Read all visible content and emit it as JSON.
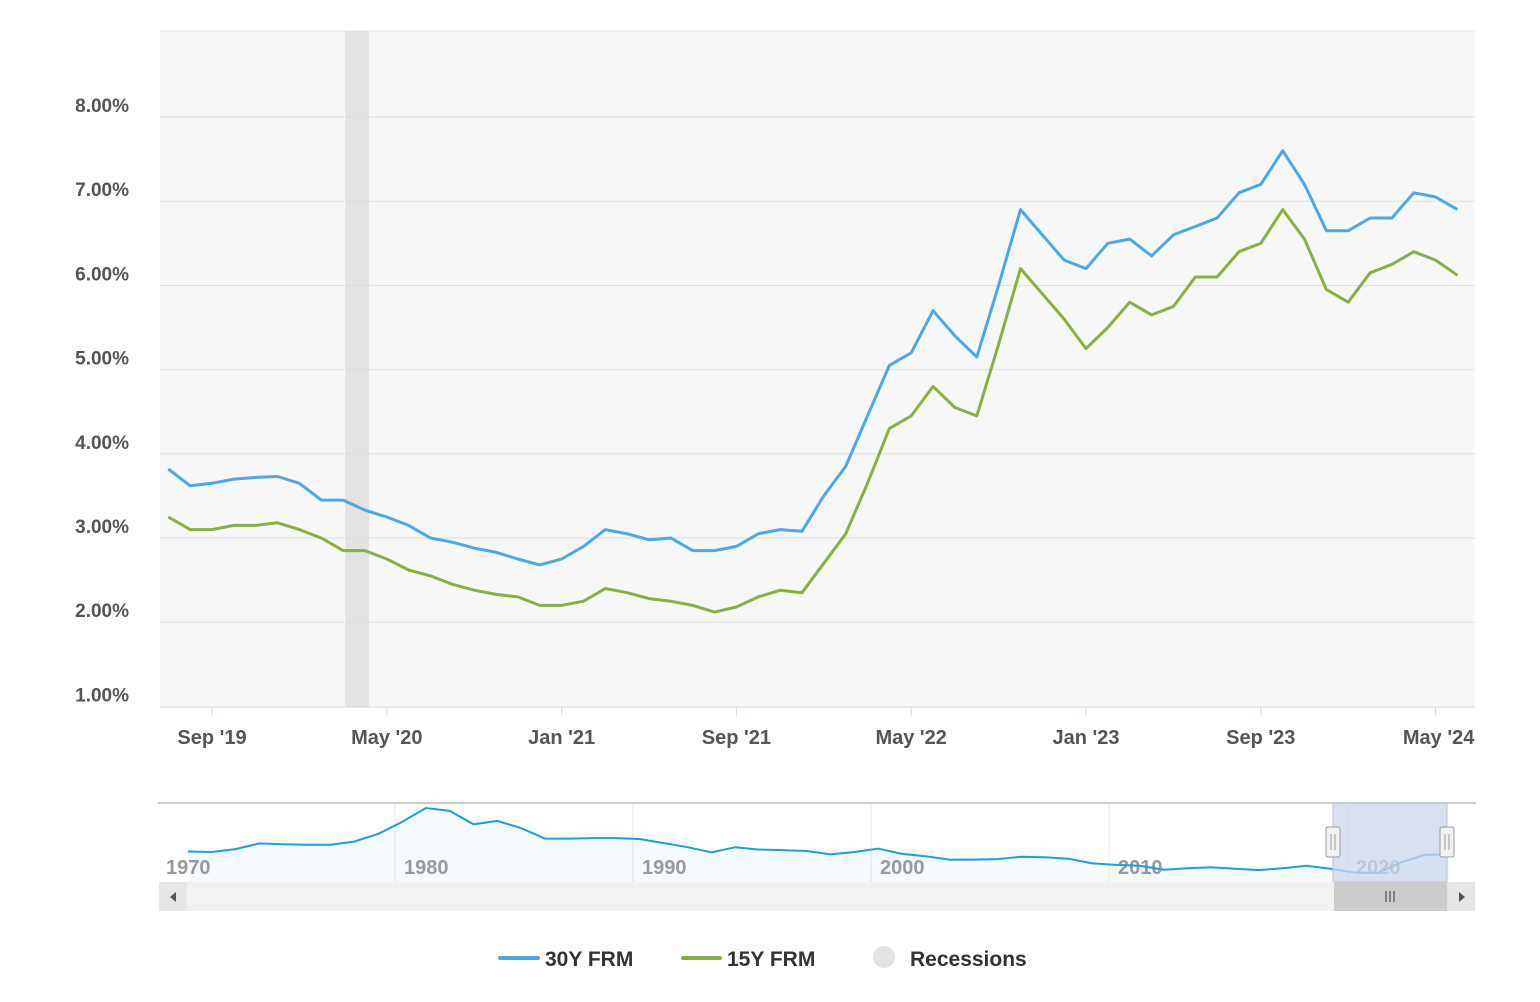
{
  "chart_data": {
    "type": "line",
    "title": "",
    "xlabel": "",
    "ylabel": "",
    "ylim": [
      1,
      8.5
    ],
    "y_ticks": [
      "1.00%",
      "2.00%",
      "3.00%",
      "4.00%",
      "5.00%",
      "6.00%",
      "7.00%",
      "8.00%"
    ],
    "y_tick_values": [
      1,
      2,
      3,
      4,
      5,
      6,
      7,
      8
    ],
    "x_ticks": [
      "Sep '19",
      "May '20",
      "Jan '21",
      "Sep '21",
      "May '22",
      "Jan '23",
      "Sep '23",
      "May '24"
    ],
    "x_tick_dates": [
      "2019-09",
      "2020-05",
      "2021-01",
      "2021-09",
      "2022-05",
      "2023-01",
      "2023-09",
      "2024-05"
    ],
    "x": [
      "2019-07",
      "2019-08",
      "2019-09",
      "2019-10",
      "2019-11",
      "2019-12",
      "2020-01",
      "2020-02",
      "2020-03",
      "2020-04",
      "2020-05",
      "2020-06",
      "2020-07",
      "2020-08",
      "2020-09",
      "2020-10",
      "2020-11",
      "2020-12",
      "2021-01",
      "2021-02",
      "2021-03",
      "2021-04",
      "2021-05",
      "2021-06",
      "2021-07",
      "2021-08",
      "2021-09",
      "2021-10",
      "2021-11",
      "2021-12",
      "2022-01",
      "2022-02",
      "2022-03",
      "2022-04",
      "2022-05",
      "2022-06",
      "2022-07",
      "2022-08",
      "2022-09",
      "2022-10",
      "2022-11",
      "2022-12",
      "2023-01",
      "2023-02",
      "2023-03",
      "2023-04",
      "2023-05",
      "2023-06",
      "2023-07",
      "2023-08",
      "2023-09",
      "2023-10",
      "2023-11",
      "2023-12",
      "2024-01",
      "2024-02",
      "2024-03",
      "2024-04",
      "2024-05",
      "2024-06"
    ],
    "series": [
      {
        "name": "30Y FRM",
        "color": "#4aa8e8",
        "values": [
          3.82,
          3.62,
          3.65,
          3.7,
          3.72,
          3.73,
          3.65,
          3.45,
          3.45,
          3.33,
          3.25,
          3.15,
          3.0,
          2.95,
          2.88,
          2.83,
          2.75,
          2.68,
          2.75,
          2.9,
          3.1,
          3.05,
          2.98,
          3.0,
          2.85,
          2.85,
          2.9,
          3.05,
          3.1,
          3.08,
          3.5,
          3.85,
          4.45,
          5.05,
          5.2,
          5.7,
          5.4,
          5.15,
          6.0,
          6.9,
          6.6,
          6.3,
          6.2,
          6.5,
          6.55,
          6.35,
          6.6,
          6.7,
          6.8,
          7.1,
          7.2,
          7.6,
          7.2,
          6.65,
          6.65,
          6.8,
          6.8,
          7.1,
          7.05,
          6.9
        ]
      },
      {
        "name": "15Y FRM",
        "color": "#86b041",
        "values": [
          3.25,
          3.1,
          3.1,
          3.15,
          3.15,
          3.18,
          3.1,
          3.0,
          2.85,
          2.85,
          2.75,
          2.62,
          2.55,
          2.45,
          2.38,
          2.33,
          2.3,
          2.2,
          2.2,
          2.25,
          2.4,
          2.35,
          2.28,
          2.25,
          2.2,
          2.12,
          2.18,
          2.3,
          2.38,
          2.35,
          2.7,
          3.05,
          3.65,
          4.3,
          4.45,
          4.8,
          4.55,
          4.45,
          5.3,
          6.2,
          5.9,
          5.6,
          5.25,
          5.5,
          5.8,
          5.65,
          5.75,
          6.1,
          6.1,
          6.4,
          6.5,
          6.9,
          6.55,
          5.95,
          5.8,
          6.15,
          6.25,
          6.4,
          6.3,
          6.12
        ]
      }
    ],
    "recessions": [
      {
        "start": "2020-02",
        "end": "2020-04"
      }
    ],
    "legend": {
      "placement": "bottom",
      "items": [
        "30Y FRM",
        "15Y FRM",
        "Recessions"
      ],
      "recession_color": "#e3e3e3"
    },
    "navigator": {
      "labels": [
        "1970",
        "1980",
        "1990",
        "2000",
        "2010",
        "2020"
      ],
      "years": [
        1971,
        1972,
        1973,
        1974,
        1975,
        1976,
        1977,
        1978,
        1979,
        1980,
        1981,
        1982,
        1983,
        1984,
        1985,
        1986,
        1987,
        1988,
        1989,
        1990,
        1991,
        1992,
        1993,
        1994,
        1995,
        1996,
        1997,
        1998,
        1999,
        2000,
        2001,
        2002,
        2003,
        2004,
        2005,
        2006,
        2007,
        2008,
        2009,
        2010,
        2011,
        2012,
        2013,
        2014,
        2015,
        2016,
        2017,
        2018,
        2019,
        2020,
        2021,
        2022,
        2023,
        2024
      ],
      "values": [
        7.5,
        7.4,
        8.0,
        9.2,
        9.0,
        8.9,
        8.9,
        9.6,
        11.2,
        13.7,
        16.6,
        16.0,
        13.2,
        13.9,
        12.4,
        10.2,
        10.2,
        10.3,
        10.3,
        10.1,
        9.25,
        8.4,
        7.3,
        8.4,
        7.9,
        7.8,
        7.6,
        6.9,
        7.4,
        8.1,
        7.0,
        6.5,
        5.8,
        5.8,
        5.9,
        6.4,
        6.3,
        6.0,
        5.0,
        4.7,
        4.5,
        3.7,
        4.0,
        4.2,
        3.9,
        3.6,
        4.0,
        4.5,
        3.9,
        3.1,
        3.0,
        5.3,
        6.8,
        6.9
      ],
      "selected_range": [
        2019.5,
        2024.5
      ]
    }
  },
  "colors": {
    "plot_bg": "#f7f7f7",
    "grid": "#dedede"
  }
}
